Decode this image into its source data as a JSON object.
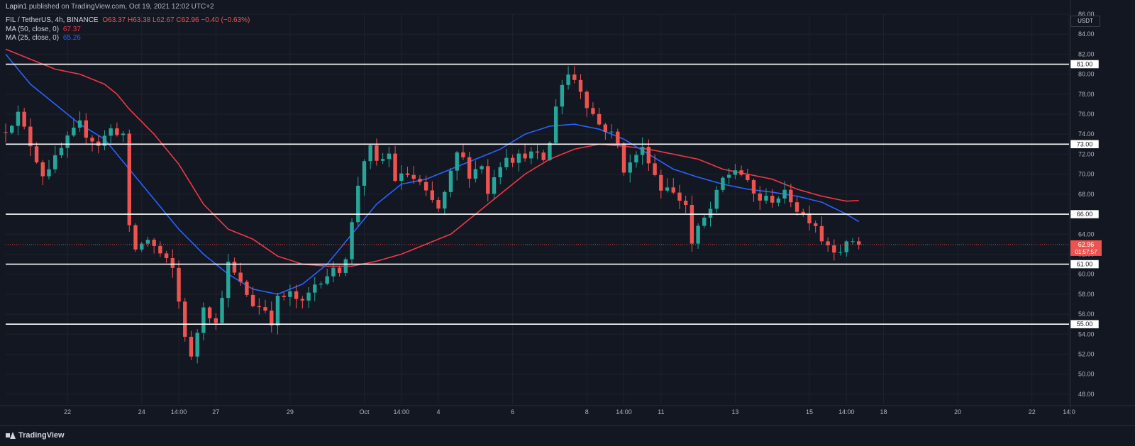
{
  "header": {
    "author": "Lapin1",
    "published_text": "published on TradingView.com, Oct 19, 2021 12:02 UTC+2",
    "symbol": "FIL / TetherUS, 4h, BINANCE",
    "ohlc_text": "O63.37 H63.38 L62.67 C62.96 −0.40 (−0.63%)"
  },
  "legend": {
    "ma50_label": "MA (50, close, 0)",
    "ma50_value": "67.37",
    "ma25_label": "MA (25, close, 0)",
    "ma25_value": "65.26"
  },
  "price_scale": {
    "currency": "USDT",
    "last_price": "62.96",
    "countdown": "01:57:57"
  },
  "footer": {
    "brand": "TradingView"
  },
  "colors": {
    "background": "#131722",
    "up": "#26a69a",
    "down": "#ef5350",
    "ma50": "#f23645",
    "ma25": "#2962ff",
    "level": "#ffffff"
  },
  "chart_data": {
    "type": "candlestick",
    "title": "FIL / TetherUS, 4h, BINANCE",
    "ylim": [
      47,
      86
    ],
    "y_ticks": [
      48,
      50,
      52,
      54,
      56,
      58,
      60,
      62,
      64,
      66,
      68,
      70,
      72,
      74,
      76,
      78,
      80,
      82,
      84,
      86
    ],
    "y_tick_labels": [
      "48.00",
      "50.00",
      "52.00",
      "54.00",
      "56.00",
      "58.00",
      "60.00",
      "62.00",
      "64.00",
      "66.00",
      "68.00",
      "70.00",
      "72.00",
      "74.00",
      "76.00",
      "78.00",
      "80.00",
      "82.00",
      "84.00",
      "86.00"
    ],
    "x_ticks": [
      {
        "t": 10,
        "label": "22"
      },
      {
        "t": 22,
        "label": "24"
      },
      {
        "t": 28,
        "label": "14:00"
      },
      {
        "t": 34,
        "label": "27"
      },
      {
        "t": 46,
        "label": "29"
      },
      {
        "t": 58,
        "label": "Oct"
      },
      {
        "t": 64,
        "label": "14:00"
      },
      {
        "t": 70,
        "label": "4"
      },
      {
        "t": 82,
        "label": "6"
      },
      {
        "t": 94,
        "label": "8"
      },
      {
        "t": 100,
        "label": "14:00"
      },
      {
        "t": 106,
        "label": "11"
      },
      {
        "t": 118,
        "label": "13"
      },
      {
        "t": 130,
        "label": "15"
      },
      {
        "t": 136,
        "label": "14:00"
      },
      {
        "t": 142,
        "label": "18"
      },
      {
        "t": 154,
        "label": "20"
      },
      {
        "t": 166,
        "label": "22"
      },
      {
        "t": 172,
        "label": "14:0"
      }
    ],
    "t_range": [
      0,
      172
    ],
    "levels": [
      {
        "value": 81,
        "label": "81.00"
      },
      {
        "value": 73,
        "label": "73.00"
      },
      {
        "value": 66,
        "label": "66.00"
      },
      {
        "value": 61,
        "label": "61.00"
      },
      {
        "value": 55,
        "label": "55.00"
      }
    ],
    "anchors": [
      [
        0,
        74.5
      ],
      [
        2,
        76
      ],
      [
        4,
        73
      ],
      [
        6,
        70
      ],
      [
        8,
        71.5
      ],
      [
        10,
        73.5
      ],
      [
        12,
        75
      ],
      [
        13,
        74
      ],
      [
        15,
        73
      ],
      [
        17,
        74.5
      ],
      [
        19,
        74
      ],
      [
        20,
        64.5
      ],
      [
        21,
        62.5
      ],
      [
        23,
        63.5
      ],
      [
        25,
        62
      ],
      [
        27,
        60.5
      ],
      [
        29,
        54
      ],
      [
        30,
        51.5
      ],
      [
        32,
        57
      ],
      [
        34,
        55
      ],
      [
        36,
        61
      ],
      [
        38,
        59
      ],
      [
        40,
        57
      ],
      [
        42,
        56.5
      ],
      [
        43,
        55.3
      ],
      [
        44,
        57.5
      ],
      [
        46,
        58
      ],
      [
        48,
        57
      ],
      [
        50,
        59
      ],
      [
        52,
        60
      ],
      [
        54,
        60.5
      ],
      [
        55,
        61.8
      ],
      [
        56,
        65
      ],
      [
        57,
        69
      ],
      [
        58,
        71.5
      ],
      [
        59,
        72.5
      ],
      [
        60,
        71
      ],
      [
        62,
        72
      ],
      [
        63,
        69.5
      ],
      [
        65,
        70
      ],
      [
        67,
        69
      ],
      [
        68,
        68
      ],
      [
        70,
        66.5
      ],
      [
        71,
        68
      ],
      [
        72,
        70
      ],
      [
        73,
        72
      ],
      [
        74,
        71.5
      ],
      [
        75,
        70
      ],
      [
        77,
        71
      ],
      [
        78,
        68
      ],
      [
        79,
        70
      ],
      [
        80,
        71
      ],
      [
        81,
        72
      ],
      [
        82,
        71.5
      ],
      [
        84,
        72
      ],
      [
        85,
        72
      ],
      [
        87,
        71.5
      ],
      [
        88,
        73
      ],
      [
        89,
        77
      ],
      [
        90,
        79
      ],
      [
        91,
        80
      ],
      [
        92,
        79.5
      ],
      [
        93,
        78.5
      ],
      [
        94,
        77
      ],
      [
        96,
        75
      ],
      [
        97,
        74.5
      ],
      [
        98,
        74
      ],
      [
        99,
        73
      ],
      [
        100,
        70.5
      ],
      [
        101,
        71
      ],
      [
        102,
        72
      ],
      [
        103,
        72.5
      ],
      [
        104,
        71.5
      ],
      [
        105,
        70
      ],
      [
        106,
        68.5
      ],
      [
        107,
        69
      ],
      [
        108,
        68
      ],
      [
        110,
        67
      ],
      [
        111,
        63
      ],
      [
        112,
        64.5
      ],
      [
        114,
        66.5
      ],
      [
        115,
        68
      ],
      [
        116,
        69.5
      ],
      [
        118,
        70.5
      ],
      [
        119,
        70
      ],
      [
        120,
        69
      ],
      [
        121,
        68
      ],
      [
        122,
        67.5
      ],
      [
        124,
        67.5
      ],
      [
        126,
        68
      ],
      [
        127,
        67.5
      ],
      [
        128,
        66.5
      ],
      [
        130,
        65.5
      ],
      [
        131,
        65
      ],
      [
        132,
        63.5
      ],
      [
        133,
        63
      ],
      [
        134,
        62.6
      ],
      [
        135,
        62.5
      ],
      [
        136,
        62.9
      ],
      [
        137,
        63.4
      ],
      [
        138,
        62.96
      ]
    ],
    "ma50_anchors": [
      [
        0,
        82.5
      ],
      [
        4,
        81.5
      ],
      [
        8,
        80.5
      ],
      [
        12,
        80
      ],
      [
        16,
        79
      ],
      [
        18,
        78
      ],
      [
        20,
        76.5
      ],
      [
        24,
        74
      ],
      [
        28,
        71
      ],
      [
        32,
        67
      ],
      [
        36,
        64.5
      ],
      [
        40,
        63.5
      ],
      [
        44,
        61.8
      ],
      [
        48,
        61
      ],
      [
        52,
        60.8
      ],
      [
        56,
        60.8
      ],
      [
        60,
        61.3
      ],
      [
        64,
        62
      ],
      [
        68,
        63
      ],
      [
        72,
        64
      ],
      [
        76,
        66
      ],
      [
        80,
        68
      ],
      [
        84,
        70
      ],
      [
        88,
        71.5
      ],
      [
        92,
        72.5
      ],
      [
        96,
        73
      ],
      [
        100,
        72.8
      ],
      [
        104,
        72.5
      ],
      [
        108,
        72
      ],
      [
        112,
        71.5
      ],
      [
        116,
        70.5
      ],
      [
        120,
        70
      ],
      [
        124,
        69.5
      ],
      [
        128,
        68.5
      ],
      [
        132,
        67.8
      ],
      [
        136,
        67.3
      ],
      [
        138,
        67.37
      ]
    ],
    "ma25_anchors": [
      [
        0,
        82
      ],
      [
        4,
        79
      ],
      [
        8,
        77
      ],
      [
        12,
        75
      ],
      [
        16,
        73.5
      ],
      [
        18,
        72
      ],
      [
        20,
        70.5
      ],
      [
        24,
        67.5
      ],
      [
        28,
        64.5
      ],
      [
        32,
        62
      ],
      [
        36,
        60
      ],
      [
        40,
        58.5
      ],
      [
        44,
        58
      ],
      [
        48,
        59
      ],
      [
        52,
        61
      ],
      [
        56,
        64
      ],
      [
        60,
        67
      ],
      [
        64,
        69
      ],
      [
        68,
        69.5
      ],
      [
        72,
        70.5
      ],
      [
        76,
        71.5
      ],
      [
        80,
        72.5
      ],
      [
        84,
        74
      ],
      [
        88,
        74.8
      ],
      [
        92,
        75
      ],
      [
        96,
        74.5
      ],
      [
        100,
        73.5
      ],
      [
        104,
        72
      ],
      [
        108,
        70.5
      ],
      [
        112,
        69.7
      ],
      [
        116,
        69
      ],
      [
        120,
        68.5
      ],
      [
        124,
        68.2
      ],
      [
        128,
        67.8
      ],
      [
        132,
        67.2
      ],
      [
        136,
        66
      ],
      [
        138,
        65.26
      ]
    ]
  }
}
